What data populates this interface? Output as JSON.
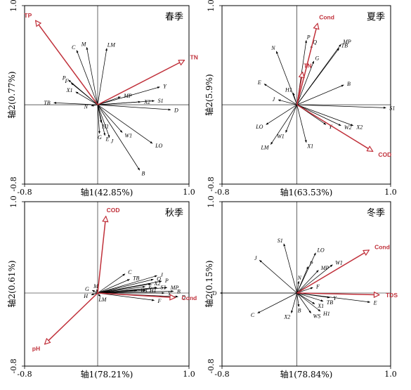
{
  "chart_data": [
    {
      "type": "scatter",
      "title": "春季",
      "xlabel": "轴1(42.85%)",
      "ylabel": "轴2(0.77%)",
      "xlim": [
        -0.8,
        1.0
      ],
      "ylim": [
        -0.8,
        1.0
      ],
      "tick_labels": {
        "xmin": "-0.8",
        "xmax": "1.0",
        "ymin": "-0.8",
        "ymax": "1.0"
      },
      "species": [
        {
          "name": "C",
          "x": -0.23,
          "y": 0.55
        },
        {
          "name": "M",
          "x": -0.12,
          "y": 0.58
        },
        {
          "name": "LM",
          "x": 0.1,
          "y": 0.57
        },
        {
          "name": "P",
          "x": -0.32,
          "y": 0.25
        },
        {
          "name": "F",
          "x": -0.29,
          "y": 0.22
        },
        {
          "name": "X1",
          "x": -0.24,
          "y": 0.13
        },
        {
          "name": "TB",
          "x": -0.48,
          "y": 0.02
        },
        {
          "name": "N",
          "x": -0.07,
          "y": -0.01
        },
        {
          "name": "MP",
          "x": 0.25,
          "y": 0.08
        },
        {
          "name": "X2",
          "x": 0.47,
          "y": 0.03
        },
        {
          "name": "S1",
          "x": 0.62,
          "y": 0.04
        },
        {
          "name": "Y",
          "x": 0.68,
          "y": 0.18
        },
        {
          "name": "D",
          "x": 0.8,
          "y": -0.05
        },
        {
          "name": "H1",
          "x": 0.04,
          "y": -0.18
        },
        {
          "name": "W1",
          "x": 0.27,
          "y": -0.28
        },
        {
          "name": "G",
          "x": 0.02,
          "y": -0.29
        },
        {
          "name": "E",
          "x": 0.08,
          "y": -0.31
        },
        {
          "name": "J",
          "x": 0.13,
          "y": -0.33
        },
        {
          "name": "LO",
          "x": 0.6,
          "y": -0.39
        },
        {
          "name": "B",
          "x": 0.46,
          "y": -0.66
        }
      ],
      "env": [
        {
          "name": "TP",
          "x": -0.68,
          "y": 0.85
        },
        {
          "name": "TN",
          "x": 0.95,
          "y": 0.45
        }
      ]
    },
    {
      "type": "scatter",
      "title": "夏季",
      "xlabel": "轴1(63.53%)",
      "ylabel": "轴2(5.9%)",
      "xlim": [
        -0.8,
        1.0
      ],
      "ylim": [
        -0.8,
        1.0
      ],
      "tick_labels": {
        "xmin": "-0.8",
        "xmax": "1.0",
        "ymin": "-0.8",
        "ymax": "1.0"
      },
      "species": [
        {
          "name": "P",
          "x": 0.1,
          "y": 0.65
        },
        {
          "name": "Q",
          "x": 0.16,
          "y": 0.6
        },
        {
          "name": "MP",
          "x": 0.47,
          "y": 0.61
        },
        {
          "name": "TB",
          "x": 0.45,
          "y": 0.57
        },
        {
          "name": "G",
          "x": 0.18,
          "y": 0.44
        },
        {
          "name": "N",
          "x": -0.22,
          "y": 0.54
        },
        {
          "name": "H1",
          "x": -0.04,
          "y": 0.12
        },
        {
          "name": "E",
          "x": -0.35,
          "y": 0.21
        },
        {
          "name": "J",
          "x": -0.2,
          "y": 0.05
        },
        {
          "name": "B",
          "x": 0.5,
          "y": 0.2
        },
        {
          "name": "S1",
          "x": 0.95,
          "y": -0.03
        },
        {
          "name": "LO",
          "x": -0.33,
          "y": -0.2
        },
        {
          "name": "W1",
          "x": -0.12,
          "y": -0.28
        },
        {
          "name": "LM",
          "x": -0.28,
          "y": -0.4
        },
        {
          "name": "X1",
          "x": 0.1,
          "y": -0.38
        },
        {
          "name": "Y",
          "x": 0.31,
          "y": -0.2
        },
        {
          "name": "W2",
          "x": 0.47,
          "y": -0.21
        },
        {
          "name": "X2",
          "x": 0.6,
          "y": -0.21
        }
      ],
      "env": [
        {
          "name": "Cond",
          "x": 0.22,
          "y": 0.82
        },
        {
          "name": "TN",
          "x": 0.06,
          "y": 0.33
        },
        {
          "name": "COD",
          "x": 0.81,
          "y": -0.47
        }
      ]
    },
    {
      "type": "scatter",
      "title": "秋季",
      "xlabel": "轴1(78.21%)",
      "ylabel": "轴2(0.61%)",
      "xlim": [
        -0.8,
        1.0
      ],
      "ylim": [
        -0.8,
        1.0
      ],
      "tick_labels": {
        "xmin": "-0.8",
        "xmax": "1.0",
        "ymin": "-0.8",
        "ymax": "1.0"
      },
      "species": [
        {
          "name": "C",
          "x": 0.3,
          "y": 0.21
        },
        {
          "name": "TB",
          "x": 0.35,
          "y": 0.15
        },
        {
          "name": "J",
          "x": 0.65,
          "y": 0.19
        },
        {
          "name": "Q",
          "x": 0.61,
          "y": 0.15
        },
        {
          "name": "P",
          "x": 0.7,
          "y": 0.13
        },
        {
          "name": "X2",
          "x": 0.58,
          "y": 0.1
        },
        {
          "name": "S1",
          "x": 0.65,
          "y": 0.06
        },
        {
          "name": "MP",
          "x": 0.76,
          "y": 0.06
        },
        {
          "name": "E",
          "x": 0.52,
          "y": 0.07
        },
        {
          "name": "B",
          "x": 0.83,
          "y": 0.02
        },
        {
          "name": "D",
          "x": 0.88,
          "y": -0.04
        },
        {
          "name": "Y",
          "x": 0.73,
          "y": 0.0
        },
        {
          "name": "W1",
          "x": 0.43,
          "y": 0.03
        },
        {
          "name": "H1",
          "x": 0.53,
          "y": 0.03
        },
        {
          "name": "G",
          "x": -0.06,
          "y": 0.03
        },
        {
          "name": "M",
          "x": -0.01,
          "y": 0.04
        },
        {
          "name": "H",
          "x": -0.07,
          "y": -0.02
        },
        {
          "name": "LM",
          "x": 0.03,
          "y": -0.04
        },
        {
          "name": "F",
          "x": 0.62,
          "y": -0.08
        }
      ],
      "env": [
        {
          "name": "COD",
          "x": 0.09,
          "y": 0.84
        },
        {
          "name": "pH",
          "x": -0.58,
          "y": -0.56
        },
        {
          "name": "Cond",
          "x": 0.85,
          "y": -0.05
        }
      ]
    },
    {
      "type": "scatter",
      "title": "冬季",
      "xlabel": "轴1(78.84%)",
      "ylabel": "轴2(0.15%)",
      "xlim": [
        -0.8,
        1.0
      ],
      "ylim": [
        -0.8,
        1.0
      ],
      "tick_labels": {
        "xmin": "-0.8",
        "xmax": "1.0",
        "ymin": "-0.8",
        "ymax": "1.0"
      },
      "species": [
        {
          "name": "S1",
          "x": -0.14,
          "y": 0.54
        },
        {
          "name": "J",
          "x": -0.4,
          "y": 0.36
        },
        {
          "name": "LO",
          "x": 0.2,
          "y": 0.44
        },
        {
          "name": "P",
          "x": 0.12,
          "y": 0.29
        },
        {
          "name": "MP",
          "x": 0.23,
          "y": 0.25
        },
        {
          "name": "W1",
          "x": 0.38,
          "y": 0.31
        },
        {
          "name": "N",
          "x": 0.02,
          "y": 0.13
        },
        {
          "name": "F",
          "x": 0.17,
          "y": 0.06
        },
        {
          "name": "Y",
          "x": 0.35,
          "y": -0.05
        },
        {
          "name": "TB",
          "x": 0.28,
          "y": -0.09
        },
        {
          "name": "X1",
          "x": 0.19,
          "y": -0.12
        },
        {
          "name": "H1",
          "x": 0.25,
          "y": -0.2
        },
        {
          "name": "B",
          "x": 0.02,
          "y": -0.15
        },
        {
          "name": "WS",
          "x": 0.15,
          "y": -0.22
        },
        {
          "name": "X2",
          "x": -0.06,
          "y": -0.22
        },
        {
          "name": "C",
          "x": -0.42,
          "y": -0.22
        },
        {
          "name": "E",
          "x": 0.78,
          "y": -0.1
        },
        {
          "name": "D",
          "x": -0.82,
          "y": 0.0
        }
      ],
      "env": [
        {
          "name": "Cond",
          "x": 0.77,
          "y": 0.47
        },
        {
          "name": "TDS",
          "x": 0.88,
          "y": -0.02
        }
      ]
    }
  ]
}
